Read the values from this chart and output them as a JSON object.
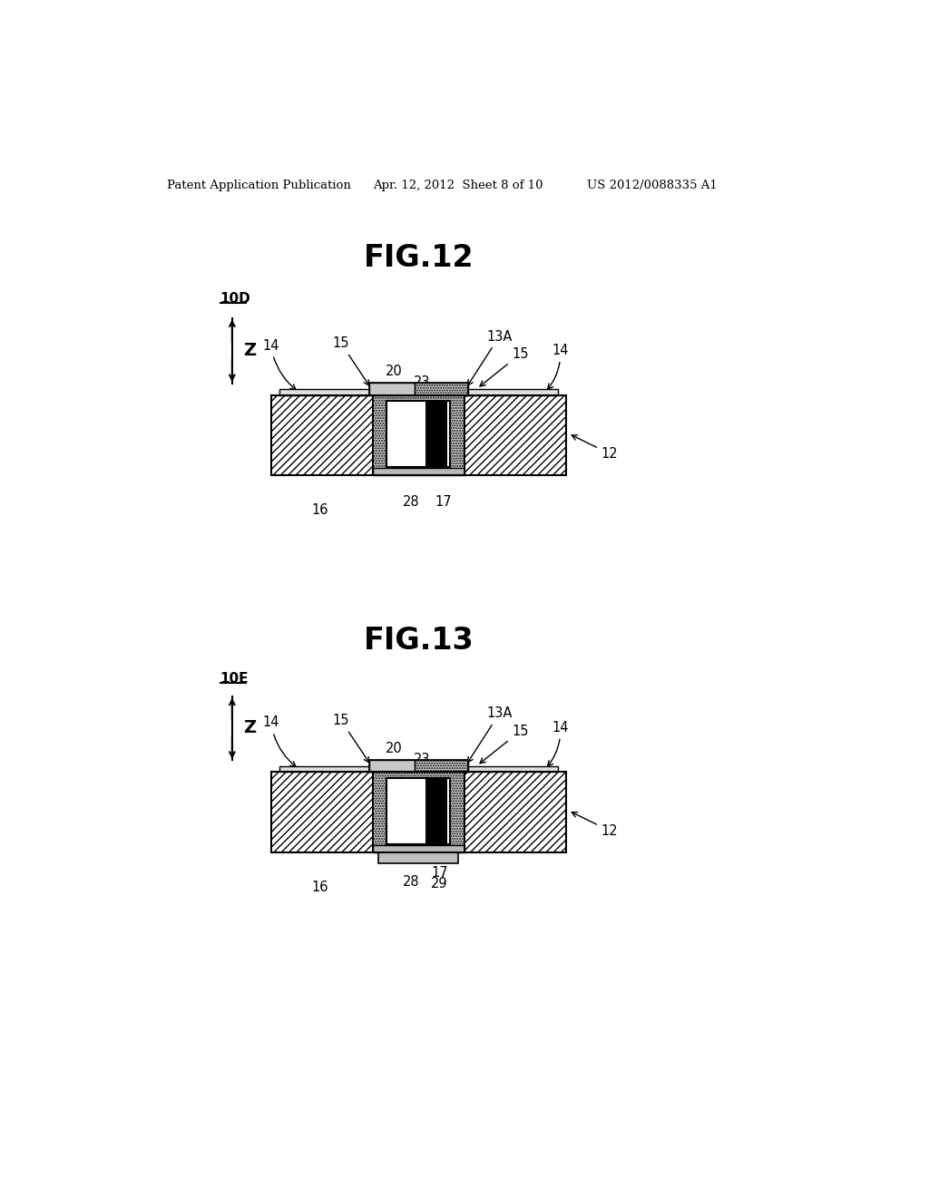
{
  "bg_color": "#ffffff",
  "header_left": "Patent Application Publication",
  "header_mid": "Apr. 12, 2012  Sheet 8 of 10",
  "header_right": "US 2012/0088335 A1",
  "fig12_title": "FIG.12",
  "fig13_title": "FIG.13",
  "label_10D": "10D",
  "label_10E": "10E",
  "label_Z": "Z",
  "hatch_angle_color": "#444444",
  "dot_fill": "#c8c8c8",
  "light_gray_cap": "#c0c0c0",
  "bottom_strip": "#b0b0b0"
}
